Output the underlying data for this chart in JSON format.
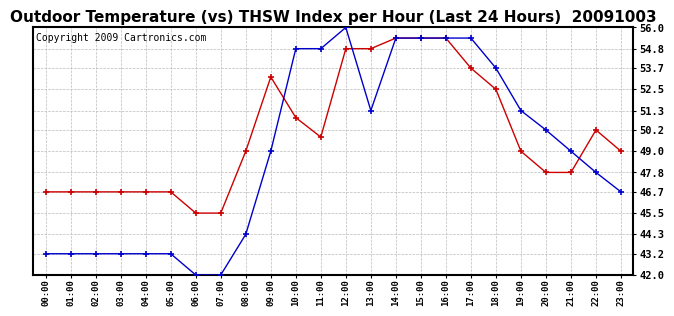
{
  "title": "Outdoor Temperature (vs) THSW Index per Hour (Last 24 Hours)  20091003",
  "copyright": "Copyright 2009 Cartronics.com",
  "hours": [
    "00:00",
    "01:00",
    "02:00",
    "03:00",
    "04:00",
    "05:00",
    "06:00",
    "07:00",
    "08:00",
    "09:00",
    "10:00",
    "11:00",
    "12:00",
    "13:00",
    "14:00",
    "15:00",
    "16:00",
    "17:00",
    "18:00",
    "19:00",
    "20:00",
    "21:00",
    "22:00",
    "23:00"
  ],
  "outdoor_temp": [
    43.2,
    43.2,
    43.2,
    43.2,
    43.2,
    43.2,
    42.0,
    42.0,
    44.3,
    49.0,
    54.8,
    54.8,
    56.0,
    51.3,
    55.4,
    55.4,
    55.4,
    55.4,
    53.7,
    51.3,
    50.2,
    49.0,
    47.8,
    46.7
  ],
  "thsw_index": [
    46.7,
    46.7,
    46.7,
    46.7,
    46.7,
    46.7,
    45.5,
    45.5,
    49.0,
    53.2,
    50.9,
    49.8,
    54.8,
    54.8,
    55.4,
    55.4,
    55.4,
    53.7,
    52.5,
    49.0,
    47.8,
    47.8,
    50.2,
    49.0
  ],
  "ylim": [
    42.0,
    56.0
  ],
  "yticks": [
    42.0,
    43.2,
    44.3,
    45.5,
    46.7,
    47.8,
    49.0,
    50.2,
    51.3,
    52.5,
    53.7,
    54.8,
    56.0
  ],
  "temp_color": "#0000cc",
  "thsw_color": "#cc0000",
  "grid_color": "#bbbbbb",
  "bg_color": "#ffffff",
  "title_fontsize": 11,
  "copyright_fontsize": 7
}
